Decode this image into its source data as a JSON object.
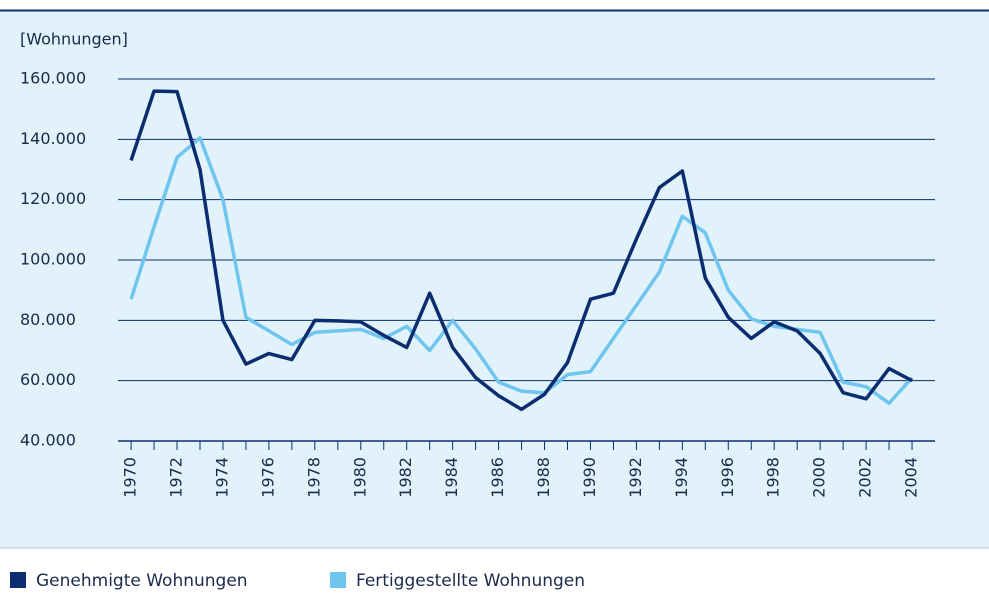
{
  "chart_data": {
    "type": "line",
    "ylabel": "[Wohnungen]",
    "x": [
      1970,
      1971,
      1972,
      1973,
      1974,
      1975,
      1976,
      1977,
      1978,
      1979,
      1980,
      1981,
      1982,
      1983,
      1984,
      1985,
      1986,
      1987,
      1988,
      1989,
      1990,
      1991,
      1992,
      1993,
      1994,
      1995,
      1996,
      1997,
      1998,
      1999,
      2000,
      2001,
      2002,
      2003,
      2004
    ],
    "series": [
      {
        "name": "Genehmigte Wohnungen",
        "color": "#0b2c6f",
        "values": [
          133000,
          156000,
          155800,
          130000,
          80000,
          65500,
          69000,
          67000,
          80000,
          79800,
          79500,
          75000,
          71000,
          89000,
          71000,
          61000,
          55000,
          50500,
          55500,
          66000,
          87000,
          89000,
          107000,
          124000,
          129500,
          94000,
          81000,
          74000,
          79500,
          76500,
          69000,
          56000,
          54000,
          64000,
          60000
        ]
      },
      {
        "name": "Fertiggestellte Wohnungen",
        "color": "#6fc5ee",
        "values": [
          87000,
          111000,
          134000,
          140500,
          120000,
          81000,
          76500,
          72000,
          76000,
          76500,
          77000,
          74000,
          78000,
          70000,
          80000,
          70500,
          59500,
          56500,
          56000,
          62000,
          63000,
          74000,
          85000,
          96000,
          114500,
          109000,
          90000,
          80500,
          78000,
          77000,
          76000,
          59500,
          58000,
          52500,
          61000
        ]
      }
    ],
    "xlim": [
      1969.43,
      2005
    ],
    "xticks": [
      1970,
      1972,
      1974,
      1976,
      1978,
      1980,
      1982,
      1984,
      1986,
      1988,
      1990,
      1992,
      1994,
      1996,
      1998,
      2000,
      2002,
      2004
    ],
    "ylim": [
      40000,
      160000
    ],
    "yticks": [
      {
        "value": 40000,
        "label": "40.000"
      },
      {
        "value": 60000,
        "label": "60.000"
      },
      {
        "value": 80000,
        "label": "80.000"
      },
      {
        "value": 100000,
        "label": "100.000"
      },
      {
        "value": 120000,
        "label": "120.000"
      },
      {
        "value": 140000,
        "label": "140.000"
      },
      {
        "value": 160000,
        "label": "160.000"
      }
    ],
    "grid": true,
    "legend": "bottom-left"
  }
}
